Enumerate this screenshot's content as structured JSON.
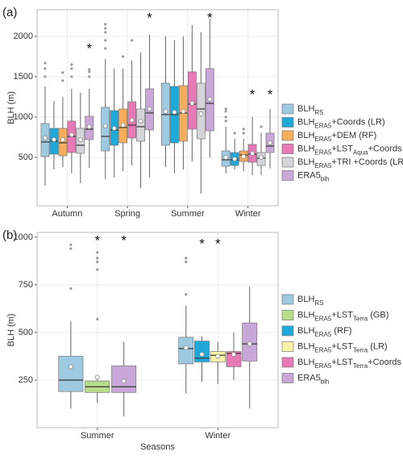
{
  "chart_data": [
    {
      "type": "box",
      "panel_label": "(a)",
      "ylabel": "BLH (m)",
      "categories": [
        "Autumn",
        "Spring",
        "Summer",
        "Winter"
      ],
      "ylim": [
        -100,
        2330
      ],
      "yticks": [
        500,
        1000,
        1500,
        2000
      ],
      "grid": true,
      "legend": "right",
      "significance_marker": "*",
      "series": [
        {
          "name": [
            "BLH",
            "RS"
          ],
          "color": "#9ecae1",
          "significant": [
            false,
            false,
            false,
            false
          ],
          "values": [
            {
              "whislo": 150,
              "q1": 510,
              "med": 690,
              "q3": 920,
              "whishi": 1380,
              "mean": 740,
              "fliers": [
                1500,
                1600,
                1670
              ]
            },
            {
              "whislo": 230,
              "q1": 580,
              "med": 760,
              "q3": 1120,
              "whishi": 1720,
              "mean": 890,
              "fliers": [
                1850,
                1950,
                2050,
                2100,
                2150
              ]
            },
            {
              "whislo": 380,
              "q1": 650,
              "med": 1030,
              "q3": 1420,
              "whishi": 2000,
              "mean": 1070,
              "fliers": []
            },
            {
              "whislo": 300,
              "q1": 390,
              "med": 470,
              "q3": 580,
              "whishi": 880,
              "mean": 500,
              "fliers": [
                950,
                1000,
                1070,
                1100
              ]
            }
          ]
        },
        {
          "name": [
            "BLH",
            "ERA5",
            "+Coords (LR)"
          ],
          "color": "#1ea9d9",
          "significant": [
            false,
            false,
            false,
            false
          ],
          "values": [
            {
              "whislo": 350,
              "q1": 540,
              "med": 700,
              "q3": 860,
              "whishi": 1200,
              "mean": 720,
              "fliers": []
            },
            {
              "whislo": 250,
              "q1": 650,
              "med": 840,
              "q3": 1080,
              "whishi": 1600,
              "mean": 860,
              "fliers": []
            },
            {
              "whislo": 300,
              "q1": 680,
              "med": 1030,
              "q3": 1380,
              "whishi": 1950,
              "mean": 1060,
              "fliers": []
            },
            {
              "whislo": 350,
              "q1": 400,
              "med": 470,
              "q3": 560,
              "whishi": 730,
              "mean": 480,
              "fliers": [
                800
              ]
            }
          ]
        },
        {
          "name": [
            "BLH",
            "ERA5",
            "+DEM (RF)"
          ],
          "color": "#f6ae5c",
          "significant": [
            false,
            false,
            false,
            false
          ],
          "values": [
            {
              "whislo": 380,
              "q1": 520,
              "med": 680,
              "q3": 860,
              "whishi": 1250,
              "mean": 720,
              "fliers": [
                1450,
                1550
              ]
            },
            {
              "whislo": 330,
              "q1": 680,
              "med": 870,
              "q3": 1100,
              "whishi": 1600,
              "mean": 900,
              "fliers": [
                1750
              ]
            },
            {
              "whislo": 350,
              "q1": 700,
              "med": 1050,
              "q3": 1390,
              "whishi": 2000,
              "mean": 1070,
              "fliers": []
            },
            {
              "whislo": 330,
              "q1": 450,
              "med": 530,
              "q3": 580,
              "whishi": 730,
              "mean": 510,
              "fliers": [
                800,
                850
              ]
            }
          ]
        },
        {
          "name": [
            "BLH",
            "ERA5",
            "+LST",
            "Aqua",
            "+Coords (RF)"
          ],
          "color": "#e879b7",
          "significant": [
            false,
            false,
            false,
            true
          ],
          "values": [
            {
              "whislo": 300,
              "q1": 560,
              "med": 760,
              "q3": 950,
              "whishi": 1350,
              "mean": 780,
              "fliers": [
                1500,
                1600,
                1650
              ]
            },
            {
              "whislo": 400,
              "q1": 740,
              "med": 900,
              "q3": 1190,
              "whishi": 1700,
              "mean": 960,
              "fliers": [
                1950
              ]
            },
            {
              "whislo": 450,
              "q1": 850,
              "med": 1160,
              "q3": 1560,
              "whishi": 2140,
              "mean": 1170,
              "fliers": []
            },
            {
              "whislo": 280,
              "q1": 440,
              "med": 540,
              "q3": 660,
              "whishi": 1000,
              "mean": 550,
              "fliers": []
            }
          ]
        },
        {
          "name": [
            "BLH",
            "ERA5",
            "+TRI +Coords (LR)"
          ],
          "color": "#d4d4d9",
          "significant": [
            false,
            false,
            false,
            false
          ],
          "values": [
            {
              "whislo": 180,
              "q1": 550,
              "med": 650,
              "q3": 860,
              "whishi": 1300,
              "mean": 720,
              "fliers": []
            },
            {
              "whislo": 120,
              "q1": 700,
              "med": 880,
              "q3": 1100,
              "whishi": 1800,
              "mean": 950,
              "fliers": []
            },
            {
              "whislo": 50,
              "q1": 730,
              "med": 1100,
              "q3": 1420,
              "whishi": 2050,
              "mean": 1040,
              "fliers": []
            },
            {
              "whislo": 280,
              "q1": 400,
              "med": 490,
              "q3": 560,
              "whishi": 800,
              "mean": 500,
              "fliers": [
                880
              ]
            }
          ]
        },
        {
          "name": [
            "ERA5",
            "blh"
          ],
          "color": "#c9a7d8",
          "significant": [
            true,
            true,
            true,
            true
          ],
          "values": [
            {
              "whislo": 370,
              "q1": 720,
              "med": 850,
              "q3": 1010,
              "whishi": 1350,
              "mean": 880,
              "fliers": [
                1500,
                1560,
                1590
              ]
            },
            {
              "whislo": 250,
              "q1": 840,
              "med": 1050,
              "q3": 1350,
              "whishi": 2020,
              "mean": 1100,
              "fliers": []
            },
            {
              "whislo": 500,
              "q1": 830,
              "med": 1170,
              "q3": 1600,
              "whishi": 2220,
              "mean": 1220,
              "fliers": []
            },
            {
              "whislo": 360,
              "q1": 560,
              "med": 640,
              "q3": 800,
              "whishi": 1100,
              "mean": 680,
              "fliers": []
            }
          ]
        }
      ]
    },
    {
      "type": "box",
      "panel_label": "(b)",
      "ylabel": "BLH (m)",
      "xlabel": "Seasons",
      "categories": [
        "Summer",
        "Winter"
      ],
      "ylim": [
        0,
        1025
      ],
      "yticks": [
        250,
        500,
        750,
        1000
      ],
      "grid": true,
      "legend": "right",
      "significance_marker": "*",
      "series": [
        {
          "name": [
            "BLH",
            "RS"
          ],
          "color": "#9ecae1",
          "significant": [
            false,
            false
          ],
          "values": [
            {
              "whislo": 100,
              "q1": 190,
              "med": 250,
              "q3": 375,
              "whishi": 560,
              "mean": 320,
              "fliers": [
                730,
                940,
                960
              ]
            },
            {
              "whislo": 180,
              "q1": 335,
              "med": 415,
              "q3": 475,
              "whishi": 640,
              "mean": 420,
              "fliers": [
                700,
                870,
                890
              ]
            }
          ]
        },
        {
          "name": [
            "BLH",
            "ERA5",
            "+LST",
            "Terra",
            " (GB)"
          ],
          "color": "#b7dc8b",
          "significant": [
            true,
            false
          ],
          "values": [
            {
              "whislo": 130,
              "q1": 185,
              "med": 215,
              "q3": 245,
              "whishi": 260,
              "mean": 265,
              "fliers": [
                570,
                830,
                870,
                890,
                920
              ]
            },
            null
          ]
        },
        {
          "name": [
            "BLH",
            "ERA5",
            " (RF)"
          ],
          "color": "#1ea9d9",
          "significant": [
            false,
            true
          ],
          "values": [
            null,
            {
              "whislo": 240,
              "q1": 345,
              "med": 365,
              "q3": 455,
              "whishi": 480,
              "mean": 385,
              "fliers": []
            }
          ]
        },
        {
          "name": [
            "BLH",
            "ERA5",
            "+LST",
            "Terra",
            " (LR)"
          ],
          "color": "#fbf3a6",
          "significant": [
            false,
            true
          ],
          "values": [
            null,
            {
              "whislo": 230,
              "q1": 345,
              "med": 380,
              "q3": 400,
              "whishi": 450,
              "mean": 375,
              "fliers": []
            }
          ]
        },
        {
          "name": [
            "BLH",
            "ERA5",
            "+LST",
            "Terra",
            "+Coords (RF)"
          ],
          "color": "#e879b7",
          "significant": [
            false,
            false
          ],
          "values": [
            null,
            {
              "whislo": 250,
              "q1": 320,
              "med": 390,
              "q3": 400,
              "whishi": 500,
              "mean": 385,
              "fliers": []
            }
          ]
        },
        {
          "name": [
            "ERA5",
            "blh"
          ],
          "color": "#c9a7d8",
          "significant": [
            true,
            false
          ],
          "values": [
            {
              "whislo": 60,
              "q1": 185,
              "med": 215,
              "q3": 325,
              "whishi": 450,
              "mean": 245,
              "fliers": []
            },
            {
              "whislo": 100,
              "q1": 350,
              "med": 440,
              "q3": 550,
              "whishi": 740,
              "mean": 440,
              "fliers": []
            }
          ]
        }
      ]
    }
  ]
}
